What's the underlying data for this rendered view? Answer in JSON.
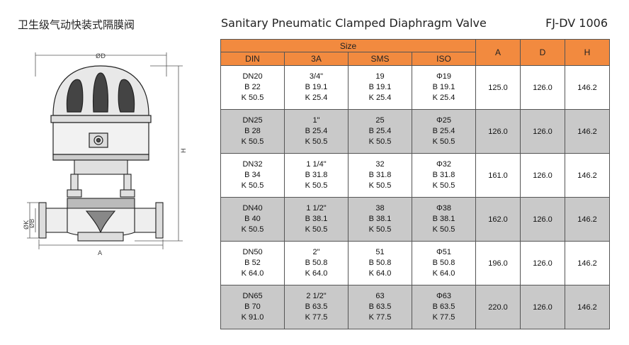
{
  "header": {
    "cn_title": "卫生级气动快装式隔膜阀",
    "en_title": "Sanitary Pneumatic Clamped Diaphragm Valve",
    "model": "FJ-DV 1006"
  },
  "drawing": {
    "labels": {
      "d": "ØD",
      "h": "H",
      "k": "ØK",
      "b": "ØB",
      "a": "A"
    }
  },
  "table": {
    "group_header": "Size",
    "size_columns": [
      "DIN",
      "3A",
      "SMS",
      "ISO"
    ],
    "dim_columns": [
      "A",
      "D",
      "H"
    ],
    "rows": [
      {
        "din": [
          "DN20",
          "B 22",
          "K 50.5"
        ],
        "a3": [
          "3/4\"",
          "B 19.1",
          "K 25.4"
        ],
        "sms": [
          "19",
          "B 19.1",
          "K 25.4"
        ],
        "iso": [
          "Φ19",
          "B 19.1",
          "K 25.4"
        ],
        "A": "125.0",
        "D": "126.0",
        "H": "146.2"
      },
      {
        "din": [
          "DN25",
          "B 28",
          "K 50.5"
        ],
        "a3": [
          "1\"",
          "B 25.4",
          "K 50.5"
        ],
        "sms": [
          "25",
          "B 25.4",
          "K 50.5"
        ],
        "iso": [
          "Φ25",
          "B 25.4",
          "K 50.5"
        ],
        "A": "126.0",
        "D": "126.0",
        "H": "146.2"
      },
      {
        "din": [
          "DN32",
          "B 34",
          "K 50.5"
        ],
        "a3": [
          "1 1/4\"",
          "B 31.8",
          "K 50.5"
        ],
        "sms": [
          "32",
          "B 31.8",
          "K 50.5"
        ],
        "iso": [
          "Φ32",
          "B 31.8",
          "K 50.5"
        ],
        "A": "161.0",
        "D": "126.0",
        "H": "146.2"
      },
      {
        "din": [
          "DN40",
          "B 40",
          "K 50.5"
        ],
        "a3": [
          "1 1/2\"",
          "B 38.1",
          "K 50.5"
        ],
        "sms": [
          "38",
          "B 38.1",
          "K 50.5"
        ],
        "iso": [
          "Φ38",
          "B 38.1",
          "K 50.5"
        ],
        "A": "162.0",
        "D": "126.0",
        "H": "146.2"
      },
      {
        "din": [
          "DN50",
          "B 52",
          "K 64.0"
        ],
        "a3": [
          "2\"",
          "B 50.8",
          "K 64.0"
        ],
        "sms": [
          "51",
          "B 50.8",
          "K 64.0"
        ],
        "iso": [
          "Φ51",
          "B 50.8",
          "K 64.0"
        ],
        "A": "196.0",
        "D": "126.0",
        "H": "146.2"
      },
      {
        "din": [
          "DN65",
          "B 70",
          "K 91.0"
        ],
        "a3": [
          "2 1/2\"",
          "B 63.5",
          "K 77.5"
        ],
        "sms": [
          "63",
          "B 63.5",
          "K 77.5"
        ],
        "iso": [
          "Φ63",
          "B 63.5",
          "K 77.5"
        ],
        "A": "220.0",
        "D": "126.0",
        "H": "146.2"
      }
    ]
  },
  "colors": {
    "header_orange": "#f28a3f",
    "alt_row_gray": "#c9c9c9"
  }
}
